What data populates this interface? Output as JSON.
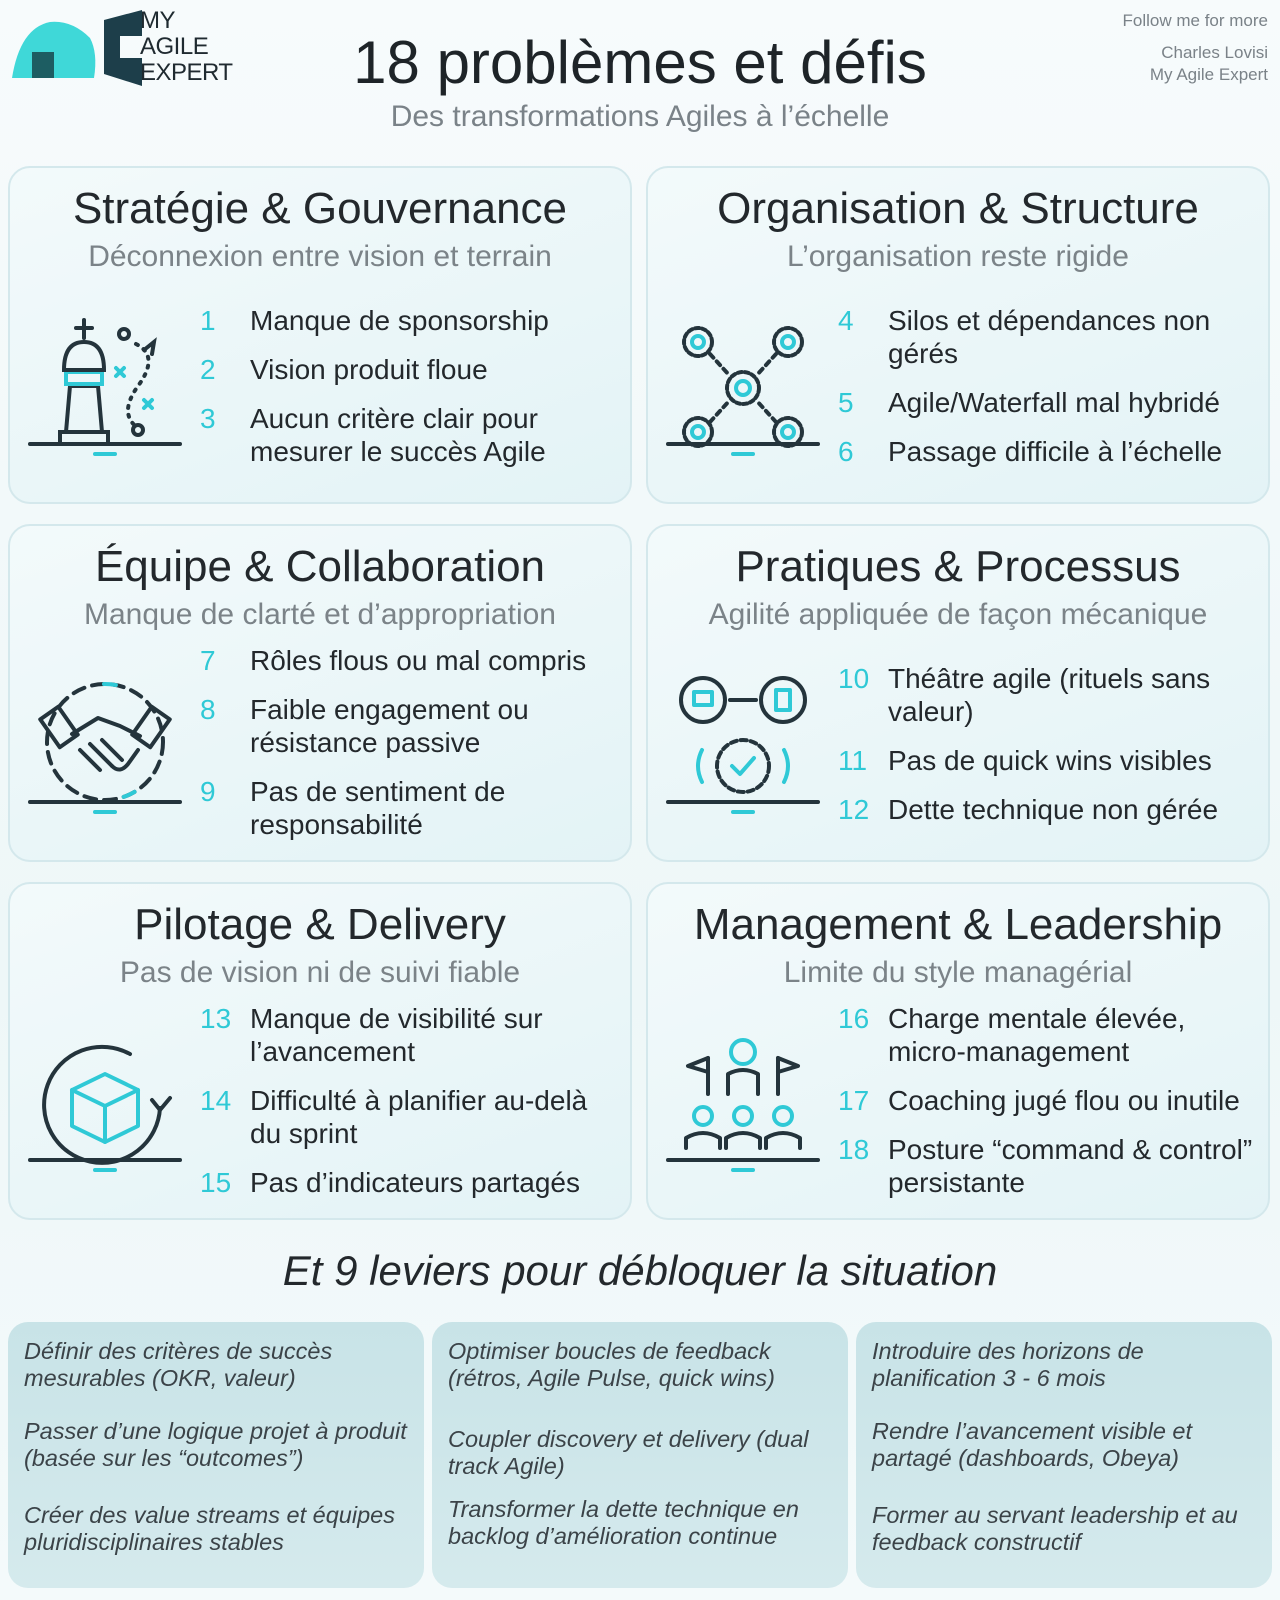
{
  "logo": {
    "line1": "MY",
    "line2": "AGILE",
    "line3": "EXPERT"
  },
  "header": {
    "title": "18 problèmes et défis",
    "subtitle": "Des transformations Agiles à l’échelle"
  },
  "follow": {
    "line1": "Follow me for more",
    "line2": "Charles Lovisi",
    "line3": "My Agile Expert"
  },
  "colors": {
    "accent": "#2fc9d6",
    "dark": "#1f3a45",
    "text": "#23282c",
    "muted": "#7b8388"
  },
  "cards": [
    {
      "title": "Stratégie & Gouvernance",
      "subtitle": "Déconnexion entre vision et terrain",
      "icon": "chess-king-icon",
      "items": [
        {
          "num": "1",
          "text": "Manque de sponsorship"
        },
        {
          "num": "2",
          "text": "Vision produit floue"
        },
        {
          "num": "3",
          "text": "Aucun critère clair pour mesurer le succès Agile"
        }
      ]
    },
    {
      "title": "Organisation & Structure",
      "subtitle": "L’organisation reste rigide",
      "icon": "network-gears-icon",
      "items": [
        {
          "num": "4",
          "text": "Silos et dépendances non gérés"
        },
        {
          "num": "5",
          "text": "Agile/Waterfall mal hybridé"
        },
        {
          "num": "6",
          "text": "Passage difficile à l’échelle"
        }
      ]
    },
    {
      "title": "Équipe & Collaboration",
      "subtitle": "Manque de clarté et d’appropriation",
      "icon": "handshake-icon",
      "items": [
        {
          "num": "7",
          "text": "Rôles flous ou mal compris"
        },
        {
          "num": "8",
          "text": "Faible engagement ou résistance passive"
        },
        {
          "num": "9",
          "text": "Pas de sentiment de responsabilité"
        }
      ]
    },
    {
      "title": "Pratiques & Processus",
      "subtitle": "Agilité appliquée de façon mécanique",
      "icon": "process-gear-icon",
      "items": [
        {
          "num": "10",
          "text": "Théâtre agile (rituels sans valeur)"
        },
        {
          "num": "11",
          "text": "Pas de quick wins visibles"
        },
        {
          "num": "12",
          "text": "Dette technique non gérée"
        }
      ]
    },
    {
      "title": "Pilotage & Delivery",
      "subtitle": "Pas de vision ni de suivi fiable",
      "icon": "delivery-box-cycle-icon",
      "items": [
        {
          "num": "13",
          "text": "Manque de visibilité sur l’avancement"
        },
        {
          "num": "14",
          "text": "Difficulté à planifier au-delà du sprint"
        },
        {
          "num": "15",
          "text": "Pas d’indicateurs partagés"
        }
      ]
    },
    {
      "title": "Management & Leadership",
      "subtitle": "Limite du style managérial",
      "icon": "leader-team-icon",
      "items": [
        {
          "num": "16",
          "text": "Charge mentale élevée, micro-management"
        },
        {
          "num": "17",
          "text": "Coaching jugé flou ou inutile"
        },
        {
          "num": "18",
          "text": "Posture “command & control” persistante"
        }
      ]
    }
  ],
  "levers_title": "Et 9 leviers pour débloquer la situation",
  "levers": [
    [
      "Définir des critères de succès mesurables (OKR, valeur)",
      "Passer d’une logique projet à produit (basée sur les “outcomes”)",
      "Créer des value streams et équipes pluridisciplinaires stables"
    ],
    [
      "Optimiser boucles de feedback (rétros, Agile Pulse, quick wins)",
      "Coupler discovery et delivery (dual track Agile)",
      "Transformer la dette technique en backlog d’amélioration continue"
    ],
    [
      "Introduire des horizons de planification 3 - 6 mois",
      "Rendre l’avancement visible et partagé (dashboards, Obeya)",
      "Former au servant leadership et au feedback constructif"
    ]
  ]
}
